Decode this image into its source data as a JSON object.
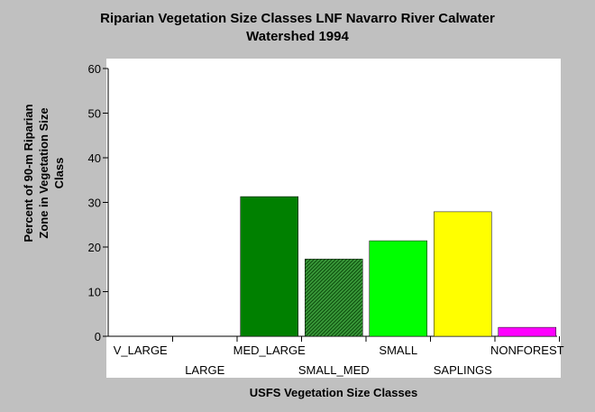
{
  "chart_data": {
    "type": "bar",
    "title": "Riparian Vegetation Size Classes LNF Navarro River Calwater\nWatershed 1994",
    "xlabel": "USFS Vegetation Size Classes",
    "ylabel": "Percent of 90-m Riparian\nZone in Vegetation Size\nClass",
    "categories": [
      "V_LARGE",
      "LARGE",
      "MED_LARGE",
      "SMALL_MED",
      "SMALL",
      "SAPLINGS",
      "NONFOREST"
    ],
    "values": [
      0,
      0,
      31.3,
      17.3,
      21.4,
      27.9,
      2.0
    ],
    "colors": [
      "#808080",
      "#808080",
      "#008000",
      "#2e8b2e",
      "#00ff00",
      "#ffff00",
      "#ff00ff"
    ],
    "hatched": [
      false,
      false,
      false,
      true,
      false,
      false,
      false
    ],
    "ylim": [
      0,
      60
    ],
    "yticks": [
      0,
      10,
      20,
      30,
      40,
      50,
      60
    ],
    "grid": false
  }
}
